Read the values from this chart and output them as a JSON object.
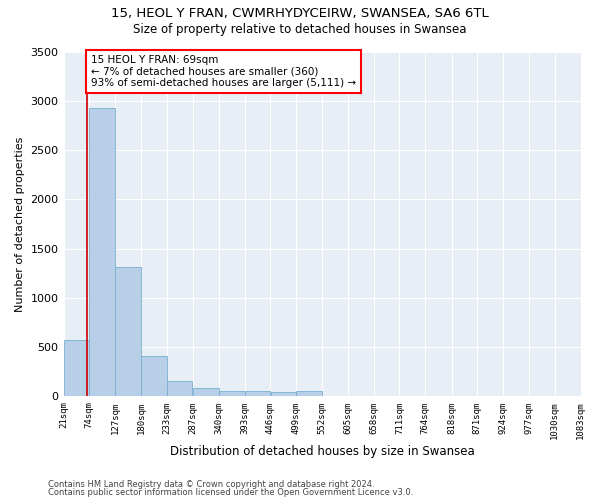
{
  "title1": "15, HEOL Y FRAN, CWMRHYDYCEIRW, SWANSEA, SA6 6TL",
  "title2": "Size of property relative to detached houses in Swansea",
  "xlabel": "Distribution of detached houses by size in Swansea",
  "ylabel": "Number of detached properties",
  "footer1": "Contains HM Land Registry data © Crown copyright and database right 2024.",
  "footer2": "Contains public sector information licensed under the Open Government Licence v3.0.",
  "annotation_title": "15 HEOL Y FRAN: 69sqm",
  "annotation_line1": "← 7% of detached houses are smaller (360)",
  "annotation_line2": "93% of semi-detached houses are larger (5,111) →",
  "subject_sqm": 69,
  "bar_left_edges": [
    21,
    74,
    127,
    180,
    233,
    287,
    340,
    393,
    446,
    499,
    552,
    605,
    658,
    711,
    764,
    818,
    871,
    924,
    977,
    1030
  ],
  "bar_heights": [
    570,
    2930,
    1310,
    415,
    155,
    85,
    60,
    55,
    50,
    55,
    0,
    0,
    0,
    0,
    0,
    0,
    0,
    0,
    0,
    0
  ],
  "bin_width": 53,
  "bar_color": "#b8cfe8",
  "bar_edge_color": "#7aaed0",
  "subject_line_color": "#cc0000",
  "background_color": "#e8eef5",
  "ylim": [
    0,
    3500
  ],
  "yticks": [
    0,
    500,
    1000,
    1500,
    2000,
    2500,
    3000,
    3500
  ],
  "tick_labels": [
    "21sqm",
    "74sqm",
    "127sqm",
    "180sqm",
    "233sqm",
    "287sqm",
    "340sqm",
    "393sqm",
    "446sqm",
    "499sqm",
    "552sqm",
    "605sqm",
    "658sqm",
    "711sqm",
    "764sqm",
    "818sqm",
    "871sqm",
    "924sqm",
    "977sqm",
    "1030sqm",
    "1083sqm"
  ]
}
